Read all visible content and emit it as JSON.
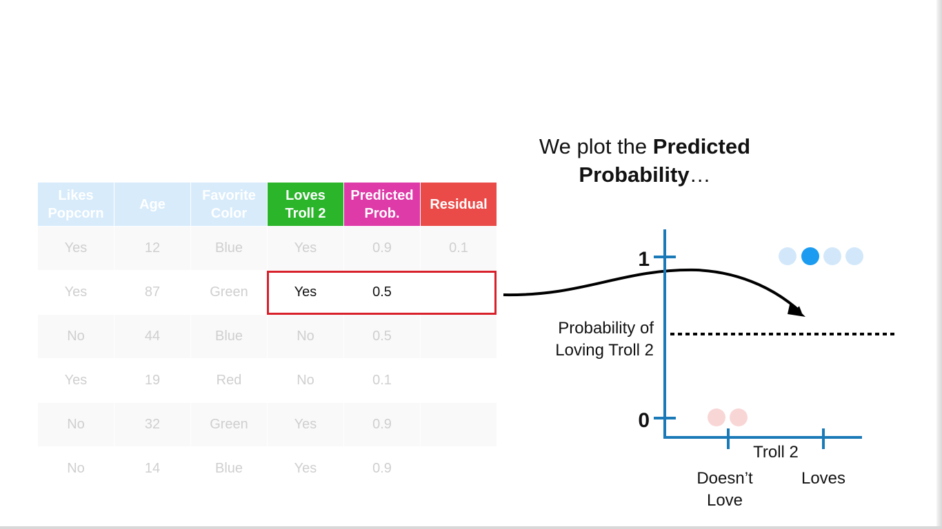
{
  "caption": {
    "line1_normal": "We plot the ",
    "line1_bold": "Predicted",
    "line2_bold": "Probability",
    "line2_tail": "…"
  },
  "table": {
    "headers": [
      [
        "Likes",
        "Popcorn"
      ],
      [
        "Age"
      ],
      [
        "Favorite",
        "Color"
      ],
      [
        "Loves",
        "Troll 2"
      ],
      [
        "Predicted",
        "Prob."
      ],
      [
        "Residual"
      ]
    ],
    "rows": [
      [
        "Yes",
        "12",
        "Blue",
        "Yes",
        "0.9",
        "0.1"
      ],
      [
        "Yes",
        "87",
        "Green",
        "Yes",
        "0.5",
        ""
      ],
      [
        "No",
        "44",
        "Blue",
        "No",
        "0.5",
        ""
      ],
      [
        "Yes",
        "19",
        "Red",
        "No",
        "0.1",
        ""
      ],
      [
        "No",
        "32",
        "Green",
        "Yes",
        "0.9",
        ""
      ],
      [
        "No",
        "14",
        "Blue",
        "Yes",
        "0.9",
        ""
      ]
    ]
  },
  "plot": {
    "y_tick_top": "1",
    "y_tick_bottom": "0",
    "threshold_label_line1": "Probability of",
    "threshold_label_line2": "Loving Troll 2",
    "x_axis_label": "Troll 2",
    "x_cat_left_line1": "Doesn’t",
    "x_cat_left_line2": "Love",
    "x_cat_right": "Loves",
    "colors": {
      "axis": "#1a7ab8",
      "dot_light_blue": "#d2e8fa",
      "dot_highlight_blue": "#1b9cf0",
      "dot_light_red": "#f9d6d6",
      "box_red": "#d8202a"
    }
  }
}
